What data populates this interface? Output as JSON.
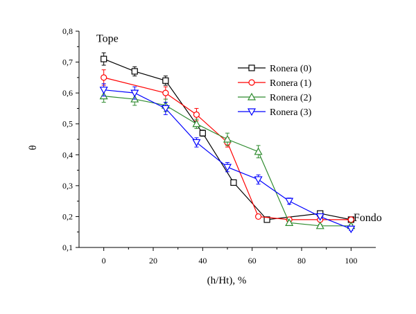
{
  "chart_data": {
    "type": "line",
    "xlabel": "(h/Ht), %",
    "ylabel": "θ",
    "xlim": [
      -10,
      110
    ],
    "ylim": [
      0.1,
      0.8
    ],
    "x_ticks": [
      0,
      20,
      40,
      60,
      80,
      100
    ],
    "y_ticks": [
      0.1,
      0.2,
      0.3,
      0.4,
      0.5,
      0.6,
      0.7,
      0.8
    ],
    "x_tick_labels": [
      "0",
      "20",
      "40",
      "60",
      "80",
      "100"
    ],
    "y_tick_labels": [
      "0,1",
      "0,2",
      "0,3",
      "0,4",
      "0,5",
      "0,6",
      "0,7",
      "0,8"
    ],
    "grid": false,
    "legend_position": "top-right",
    "annotations": [
      {
        "text": "Tope",
        "x": -3,
        "y": 0.765
      },
      {
        "text": "Fondo",
        "x": 101,
        "y": 0.185
      }
    ],
    "series": [
      {
        "name": "Ronera (0)",
        "color": "#000000",
        "marker": "square",
        "x": [
          0,
          12.5,
          25,
          40,
          52.5,
          66,
          87.5,
          100
        ],
        "y": [
          0.71,
          0.67,
          0.64,
          0.47,
          0.31,
          0.19,
          0.21,
          0.19
        ],
        "err": [
          0.02,
          0.015,
          0.015,
          0.01,
          0.005,
          0.005,
          0.005,
          0.005
        ]
      },
      {
        "name": "Ronera (1)",
        "color": "#ff0000",
        "marker": "circle",
        "x": [
          0,
          25,
          37.5,
          50,
          62.5,
          75,
          87.5,
          100
        ],
        "y": [
          0.65,
          0.6,
          0.53,
          0.44,
          0.2,
          0.19,
          0.19,
          0.19
        ],
        "err": [
          0.025,
          0.02,
          0.02,
          0.015,
          0.005,
          0.005,
          0.005,
          0.005
        ]
      },
      {
        "name": "Ronera (2)",
        "color": "#2e8b2e",
        "marker": "triangle-up",
        "x": [
          0,
          12.5,
          25,
          37.5,
          50,
          62.5,
          75,
          87.5,
          100
        ],
        "y": [
          0.59,
          0.58,
          0.56,
          0.5,
          0.45,
          0.41,
          0.18,
          0.17,
          0.17
        ],
        "err": [
          0.02,
          0.02,
          0.02,
          0.015,
          0.02,
          0.02,
          0.005,
          0.005,
          0.005
        ]
      },
      {
        "name": "Ronera (3)",
        "color": "#0000ff",
        "marker": "triangle-down",
        "x": [
          0,
          12.5,
          25,
          37.5,
          50,
          62.5,
          75,
          87.5,
          100
        ],
        "y": [
          0.61,
          0.6,
          0.55,
          0.44,
          0.36,
          0.32,
          0.25,
          0.2,
          0.16
        ],
        "err": [
          0.02,
          0.02,
          0.02,
          0.015,
          0.015,
          0.015,
          0.01,
          0.005,
          0.005
        ]
      }
    ]
  }
}
